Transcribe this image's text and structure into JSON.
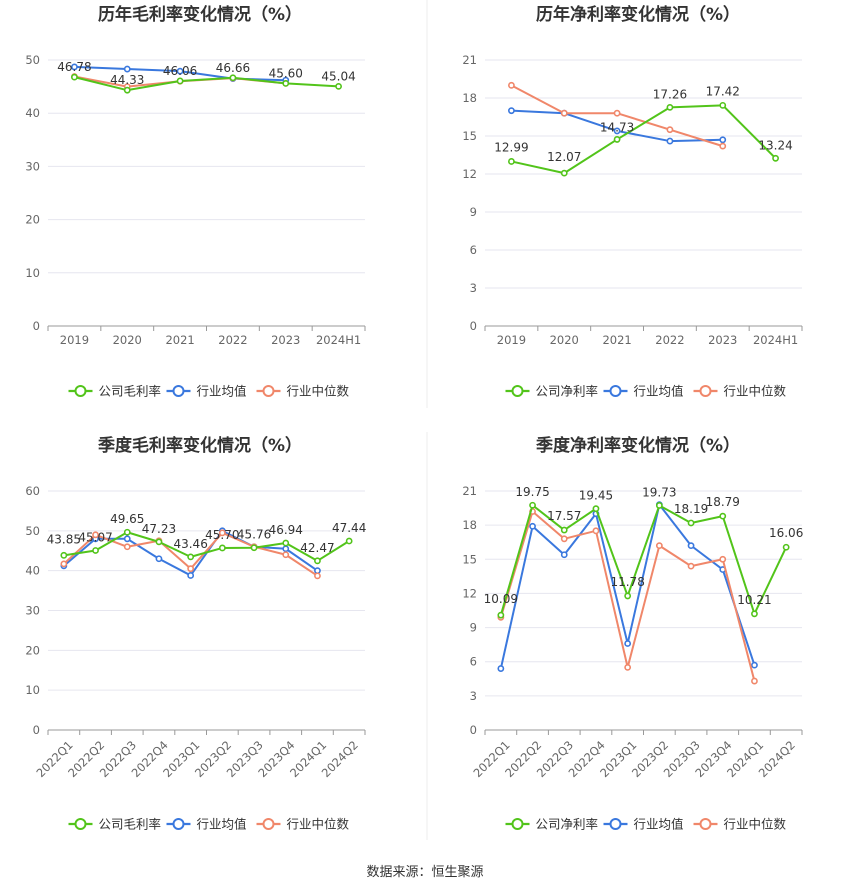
{
  "source_text": "数据来源：恒生聚源",
  "colors": {
    "company": "#52c41a",
    "industry_avg": "#3a78de",
    "industry_median": "#f0876a",
    "grid": "#e6e6ef",
    "axis": "#999999"
  },
  "chart_data": [
    {
      "type": "line",
      "title": "历年毛利率变化情况（%）",
      "categories": [
        "2019",
        "2020",
        "2021",
        "2022",
        "2023",
        "2024H1"
      ],
      "ylim": [
        0,
        50
      ],
      "yticks": [
        0,
        10,
        20,
        30,
        40,
        50
      ],
      "grid": true,
      "legend_position": "bottom-center",
      "rotate_x_labels": false,
      "series": [
        {
          "name": "公司毛利率",
          "values": [
            46.78,
            44.33,
            46.06,
            46.66,
            45.6,
            45.04
          ]
        },
        {
          "name": "行业均值",
          "values": [
            48.7,
            48.3,
            47.9,
            46.5,
            46.2,
            null
          ]
        },
        {
          "name": "行业中位数",
          "values": [
            46.9,
            45.0,
            46.0,
            46.6,
            45.6,
            null
          ]
        }
      ],
      "data_labels": [
        "46.78",
        "44.33",
        "46.06",
        "46.66",
        "45.60",
        "45.04"
      ]
    },
    {
      "type": "line",
      "title": "历年净利率变化情况（%）",
      "categories": [
        "2019",
        "2020",
        "2021",
        "2022",
        "2023",
        "2024H1"
      ],
      "ylim": [
        0,
        21
      ],
      "yticks": [
        0,
        3,
        6,
        9,
        12,
        15,
        18,
        21
      ],
      "grid": true,
      "legend_position": "bottom-center",
      "rotate_x_labels": false,
      "series": [
        {
          "name": "公司净利率",
          "values": [
            12.99,
            12.07,
            14.73,
            17.26,
            17.42,
            13.24
          ]
        },
        {
          "name": "行业均值",
          "values": [
            17.0,
            16.8,
            15.4,
            14.6,
            14.7,
            null
          ]
        },
        {
          "name": "行业中位数",
          "values": [
            19.0,
            16.8,
            16.8,
            15.5,
            14.2,
            null
          ]
        }
      ],
      "data_labels": [
        "12.99",
        "12.07",
        "14.73",
        "17.26",
        "17.42",
        "13.24"
      ]
    },
    {
      "type": "line",
      "title": "季度毛利率变化情况（%）",
      "categories": [
        "2022Q1",
        "2022Q2",
        "2022Q3",
        "2022Q4",
        "2023Q1",
        "2023Q2",
        "2023Q3",
        "2023Q4",
        "2024Q1",
        "2024Q2"
      ],
      "ylim": [
        0,
        60
      ],
      "yticks": [
        0,
        10,
        20,
        30,
        40,
        50,
        60
      ],
      "grid": true,
      "legend_position": "bottom-center",
      "rotate_x_labels": true,
      "series": [
        {
          "name": "公司毛利率",
          "values": [
            43.85,
            45.07,
            49.65,
            47.23,
            43.46,
            45.7,
            45.76,
            46.94,
            42.47,
            47.44
          ]
        },
        {
          "name": "行业均值",
          "values": [
            41.2,
            48.0,
            48.0,
            43.0,
            38.8,
            50.0,
            46.0,
            45.5,
            40.0,
            null
          ]
        },
        {
          "name": "行业中位数",
          "values": [
            41.7,
            49.0,
            46.0,
            47.5,
            40.5,
            49.5,
            46.0,
            44.0,
            38.7,
            null
          ]
        }
      ],
      "data_labels": [
        "43.85",
        "45.07",
        "49.65",
        "47.23",
        "43.46",
        "45.70",
        "45.76",
        "46.94",
        "42.47",
        "47.44"
      ]
    },
    {
      "type": "line",
      "title": "季度净利率变化情况（%）",
      "categories": [
        "2022Q1",
        "2022Q2",
        "2022Q3",
        "2022Q4",
        "2023Q1",
        "2023Q2",
        "2023Q3",
        "2023Q4",
        "2024Q1",
        "2024Q2"
      ],
      "ylim": [
        0,
        21
      ],
      "yticks": [
        0,
        3,
        6,
        9,
        12,
        15,
        18,
        21
      ],
      "grid": true,
      "legend_position": "bottom-center",
      "rotate_x_labels": true,
      "series": [
        {
          "name": "公司净利率",
          "values": [
            10.09,
            19.75,
            17.57,
            19.45,
            11.78,
            19.73,
            18.19,
            18.79,
            10.21,
            16.06
          ]
        },
        {
          "name": "行业均值",
          "values": [
            5.4,
            17.9,
            15.4,
            19.0,
            7.6,
            19.8,
            16.2,
            14.1,
            5.7,
            null
          ]
        },
        {
          "name": "行业中位数",
          "values": [
            9.9,
            19.2,
            16.8,
            17.5,
            5.5,
            16.2,
            14.4,
            15.0,
            4.3,
            null
          ]
        }
      ],
      "data_labels": [
        "10.09",
        "19.75",
        "17.57",
        "19.45",
        "11.78",
        "19.73",
        "18.19",
        "18.79",
        "10.21",
        "16.06"
      ]
    }
  ]
}
